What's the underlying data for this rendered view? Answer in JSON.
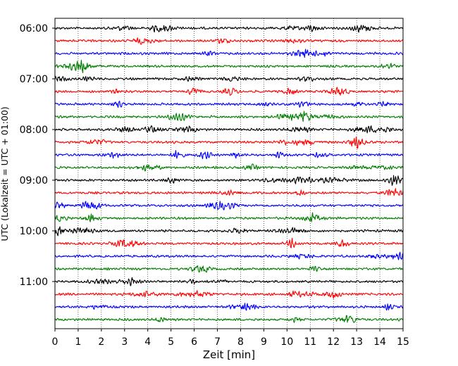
{
  "chart_data": {
    "type": "line",
    "title": "",
    "xlabel": "Zeit  [min]",
    "ylabel": "UTC (Lokalzeit = UTC + 01:00)",
    "xlim": [
      0,
      15
    ],
    "x_ticks": [
      "0",
      "1",
      "2",
      "3",
      "4",
      "5",
      "6",
      "7",
      "8",
      "9",
      "10",
      "11",
      "12",
      "13",
      "14",
      "15"
    ],
    "y_ticks": [
      "06:00",
      "07:00",
      "08:00",
      "09:00",
      "10:00",
      "11:00"
    ],
    "grid": "vertical dotted",
    "row_interval_minutes": 15,
    "row_start": "06:00",
    "row_count": 24,
    "colors": [
      "#000000",
      "#ff0000",
      "#0000ff",
      "#007f00"
    ],
    "series_description": "Seismogram traces, each row 15 minutes, color cycle black-red-blue-green"
  }
}
